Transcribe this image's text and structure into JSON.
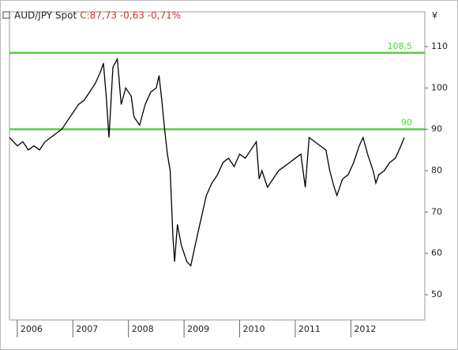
{
  "chart_data": {
    "type": "line",
    "title": "AUD/JPY Spot",
    "subtitle": "C:87,73 -0,63 -0,71%",
    "y_axis_label": "¥",
    "xlim": [
      2005.86,
      2013.33
    ],
    "xticks": [
      2006,
      2007,
      2008,
      2009,
      2010,
      2011,
      2012
    ],
    "ylim": [
      43.9,
      118.4
    ],
    "yticks": [
      50,
      60,
      70,
      80,
      90,
      100,
      110
    ],
    "series": [
      {
        "name": "AUD/JPY",
        "color": "#000000",
        "x": [
          2005.86,
          2006.0,
          2006.1,
          2006.2,
          2006.3,
          2006.4,
          2006.5,
          2006.6,
          2006.7,
          2006.8,
          2006.9,
          2007.0,
          2007.1,
          2007.2,
          2007.3,
          2007.4,
          2007.5,
          2007.55,
          2007.6,
          2007.65,
          2007.72,
          2007.8,
          2007.87,
          2007.95,
          2008.05,
          2008.1,
          2008.2,
          2008.3,
          2008.4,
          2008.5,
          2008.55,
          2008.6,
          2008.65,
          2008.7,
          2008.75,
          2008.8,
          2008.83,
          2008.88,
          2008.95,
          2009.05,
          2009.12,
          2009.2,
          2009.3,
          2009.4,
          2009.5,
          2009.6,
          2009.7,
          2009.8,
          2009.9,
          2010.0,
          2010.1,
          2010.2,
          2010.3,
          2010.35,
          2010.4,
          2010.5,
          2010.6,
          2010.7,
          2010.8,
          2010.9,
          2011.0,
          2011.1,
          2011.18,
          2011.25,
          2011.35,
          2011.45,
          2011.55,
          2011.62,
          2011.7,
          2011.75,
          2011.85,
          2011.95,
          2012.05,
          2012.15,
          2012.22,
          2012.3,
          2012.4,
          2012.45,
          2012.5,
          2012.6,
          2012.7,
          2012.8,
          2012.9,
          2012.96
        ],
        "values": [
          88,
          86,
          87,
          85,
          86,
          85,
          87,
          88,
          89,
          90,
          92,
          94,
          96,
          97,
          99,
          101,
          104,
          106,
          98,
          88,
          105,
          107,
          96,
          100,
          98,
          93,
          91,
          96,
          99,
          100,
          103,
          97,
          90,
          84,
          80,
          64,
          58,
          67,
          62,
          58,
          57,
          62,
          68,
          74,
          77,
          79,
          82,
          83,
          81,
          84,
          83,
          85,
          87,
          78,
          80,
          76,
          78,
          80,
          81,
          82,
          83,
          84,
          76,
          88,
          87,
          86,
          85,
          80,
          76,
          74,
          78,
          79,
          82,
          86,
          88,
          84,
          80,
          77,
          79,
          80,
          82,
          83,
          86,
          88
        ]
      }
    ],
    "levels": [
      {
        "value": 108.5,
        "label": "108,5",
        "color": "#55cc44"
      },
      {
        "value": 90,
        "label": "90",
        "color": "#55cc44"
      }
    ]
  }
}
